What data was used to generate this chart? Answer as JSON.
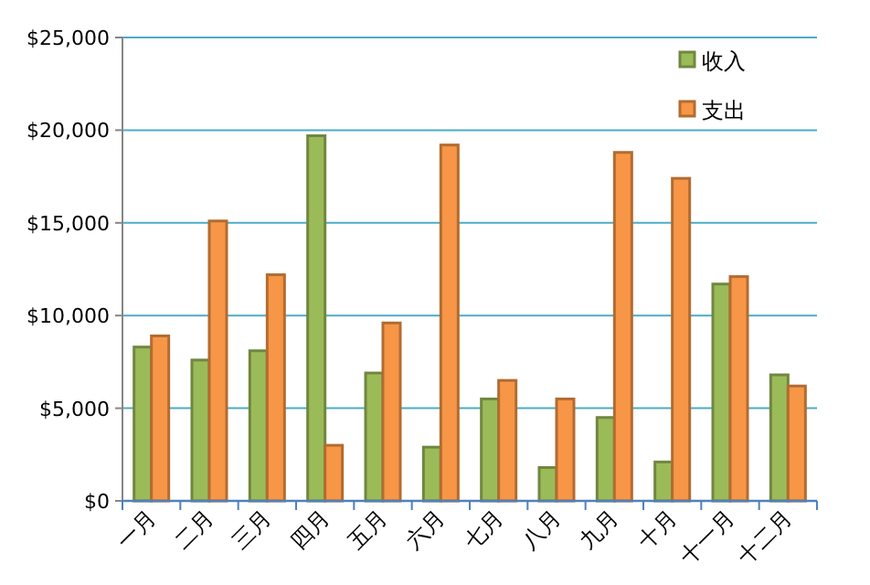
{
  "chart_data": {
    "type": "bar",
    "categories": [
      "一月",
      "二月",
      "三月",
      "四月",
      "五月",
      "六月",
      "七月",
      "八月",
      "九月",
      "十月",
      "十一月",
      "十二月"
    ],
    "series": [
      {
        "name": "收入",
        "color": "#9bbb59",
        "values": [
          8300,
          7600,
          8100,
          19700,
          6900,
          2900,
          5500,
          1800,
          4500,
          2100,
          11700,
          6800
        ]
      },
      {
        "name": "支出",
        "color": "#f79646",
        "values": [
          8900,
          15100,
          12200,
          3000,
          9600,
          19200,
          6500,
          5500,
          18800,
          17400,
          12100,
          6200
        ]
      }
    ],
    "ylim": [
      0,
      25000
    ],
    "yticks": [
      {
        "value": 0,
        "label": "$0"
      },
      {
        "value": 5000,
        "label": "$5,000"
      },
      {
        "value": 10000,
        "label": "$10,000"
      },
      {
        "value": 15000,
        "label": "$15,000"
      },
      {
        "value": 20000,
        "label": "$20,000"
      },
      {
        "value": 25000,
        "label": "$25,000"
      }
    ],
    "grid": "y",
    "legend": "top right"
  }
}
